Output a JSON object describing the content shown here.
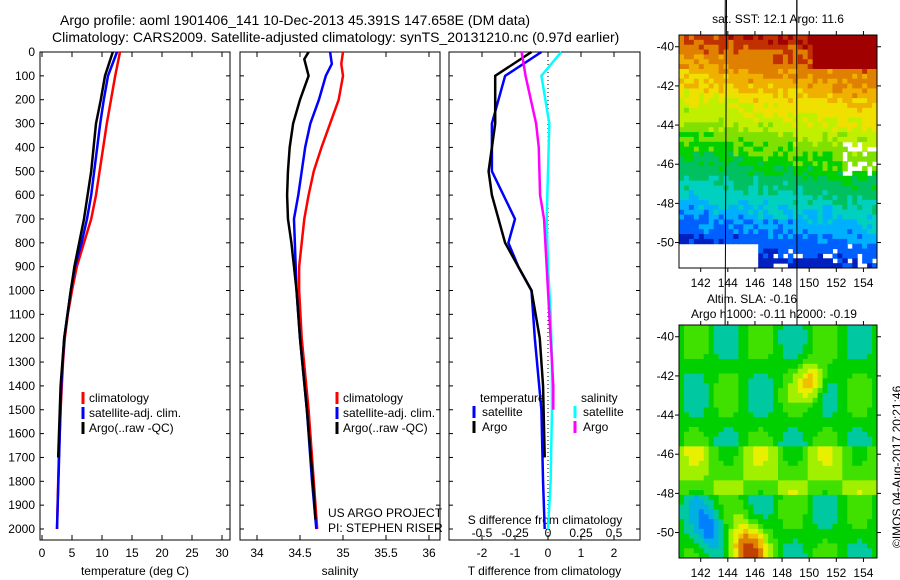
{
  "title": {
    "line1": "Argo profile: aoml 1901406_141 10-Dec-2013 45.391S 147.658E (DM data)",
    "line2": "Climatology: CARS2009. Satellite-adjusted climatology: synTS_20131210.nc (0.97d earlier)"
  },
  "colors": {
    "climatology": "#ff0000",
    "satellite": "#0000ff",
    "argo": "#000000",
    "sat_sal": "#00ffff",
    "argo_sal": "#ff00ff"
  },
  "chart_data": [
    {
      "type": "line",
      "xlabel": "temperature (deg C)",
      "xlim": [
        -1,
        31
      ],
      "ylim": [
        2050,
        0
      ],
      "xticks": [
        "0",
        "5",
        "10",
        "15",
        "20",
        "25",
        "30"
      ],
      "yticks": [
        "0",
        "100",
        "200",
        "300",
        "400",
        "500",
        "600",
        "700",
        "800",
        "900",
        "1000",
        "1100",
        "1200",
        "1300",
        "1400",
        "1500",
        "1600",
        "1700",
        "1800",
        "1900",
        "2000"
      ],
      "legend": [
        "climatology",
        "satellite-adj. clim.",
        "Argo(..raw -QC)"
      ],
      "series": [
        {
          "name": "climatology",
          "color": "#ff0000",
          "depth": [
            0,
            100,
            200,
            300,
            400,
            500,
            600,
            700,
            800,
            900,
            1000,
            1100,
            1200,
            1300,
            1400,
            1500,
            1700,
            2000
          ],
          "values": [
            13,
            12.2,
            11.5,
            10.8,
            10.2,
            9.6,
            9,
            8.2,
            7,
            5.8,
            5,
            4.3,
            3.8,
            3.5,
            3.3,
            3.1,
            2.8,
            2.5
          ]
        },
        {
          "name": "satellite-adj. clim.",
          "color": "#0000ff",
          "depth": [
            0,
            100,
            200,
            300,
            400,
            500,
            600,
            700,
            800,
            900,
            1000,
            1200,
            1400,
            2000
          ],
          "values": [
            12.5,
            11,
            10.3,
            9.7,
            9.2,
            8.7,
            8.2,
            7.5,
            6.6,
            5.5,
            4.8,
            3.7,
            3.2,
            2.5
          ]
        },
        {
          "name": "Argo(..raw -QC)",
          "color": "#000000",
          "depth": [
            0,
            100,
            200,
            300,
            400,
            500,
            600,
            700,
            800,
            900,
            1000,
            1200,
            1400,
            1700
          ],
          "values": [
            11.8,
            10.5,
            9.8,
            9,
            8.6,
            8.2,
            7.6,
            7,
            6.2,
            5.4,
            4.8,
            3.7,
            3.1,
            2.7
          ]
        }
      ]
    },
    {
      "type": "line",
      "xlabel": "salinity",
      "xlim": [
        33.9,
        36.05
      ],
      "ylim": [
        2050,
        0
      ],
      "xticks": [
        "34",
        "34.5",
        "35",
        "35.5",
        "36"
      ],
      "legend": [
        "climatology",
        "satellite-adj. clim.",
        "Argo(..raw -QC)"
      ],
      "annotation": [
        "US ARGO PROJECT",
        "PI: STEPHEN RISER"
      ],
      "series": [
        {
          "name": "climatology",
          "color": "#ff0000",
          "depth": [
            0,
            50,
            100,
            200,
            300,
            400,
            500,
            600,
            700,
            800,
            900,
            1000,
            1200,
            1500,
            1800,
            2000
          ],
          "values": [
            35.0,
            34.98,
            35.0,
            34.95,
            34.85,
            34.75,
            34.66,
            34.6,
            34.55,
            34.52,
            34.49,
            34.49,
            34.52,
            34.6,
            34.66,
            34.7
          ]
        },
        {
          "name": "satellite-adj. clim.",
          "color": "#0000ff",
          "depth": [
            0,
            50,
            100,
            200,
            300,
            400,
            500,
            600,
            700,
            800,
            900,
            1000,
            1200,
            1500,
            1800,
            2000
          ],
          "values": [
            34.85,
            34.87,
            34.8,
            34.72,
            34.62,
            34.56,
            34.52,
            34.48,
            34.43,
            34.44,
            34.45,
            34.46,
            34.5,
            34.58,
            34.64,
            34.69
          ]
        },
        {
          "name": "Argo(..raw -QC)",
          "color": "#000000",
          "depth": [
            0,
            30,
            100,
            200,
            300,
            400,
            500,
            600,
            700,
            800,
            900,
            1000,
            1200,
            1500,
            1800,
            1960
          ],
          "values": [
            34.6,
            34.55,
            34.6,
            34.5,
            34.42,
            34.38,
            34.36,
            34.35,
            34.36,
            34.4,
            34.43,
            34.46,
            34.5,
            34.58,
            34.65,
            34.68
          ]
        }
      ]
    },
    {
      "type": "line",
      "xlabel": "T difference from climatology",
      "xlabel2": "S difference from climatology",
      "xlim": [
        -3,
        3
      ],
      "ylim": [
        2050,
        0
      ],
      "xticks": [
        "-2",
        "-1",
        "0",
        "1",
        "2"
      ],
      "xticks2": [
        "-0.5",
        "-0.25",
        "0",
        "0.25",
        "0.5"
      ],
      "legend_titles": [
        "temperature",
        "salinity"
      ],
      "legend": [
        "satellite",
        "Argo",
        "satellite",
        "Argo"
      ],
      "series": [
        {
          "name": "T satellite",
          "color": "#0000ff",
          "axis": "T",
          "depth": [
            0,
            100,
            300,
            500,
            700,
            800,
            900,
            1000,
            1200,
            1500,
            1800,
            2000
          ],
          "values": [
            -0.2,
            -1.3,
            -1.7,
            -1.7,
            -1.0,
            -1.2,
            -0.9,
            -0.5,
            -0.4,
            -0.2,
            -0.15,
            -0.1
          ]
        },
        {
          "name": "T Argo",
          "color": "#000000",
          "axis": "T",
          "depth": [
            0,
            100,
            300,
            500,
            600,
            800,
            1000,
            1200,
            1400,
            1700
          ],
          "values": [
            -0.5,
            -1.6,
            -1.6,
            -1.8,
            -1.7,
            -1.3,
            -0.5,
            -0.25,
            -0.15,
            -0.1
          ]
        },
        {
          "name": "S satellite",
          "color": "#00ffff",
          "axis": "S",
          "depth": [
            0,
            100,
            300,
            500,
            700,
            900,
            1100,
            1300,
            1500,
            1800,
            2000
          ],
          "values": [
            0.1,
            -0.05,
            0.01,
            0.0,
            -0.01,
            0.0,
            0.02,
            0.03,
            0.03,
            0.02,
            0.0
          ]
        },
        {
          "name": "S Argo",
          "color": "#ff00ff",
          "axis": "S",
          "depth": [
            0,
            100,
            200,
            300,
            400,
            600,
            700,
            900,
            1200,
            1400,
            1500
          ],
          "values": [
            -0.2,
            -0.17,
            -0.13,
            -0.09,
            -0.07,
            -0.06,
            -0.03,
            -0.01,
            0.02,
            0.04,
            0.04
          ]
        }
      ]
    }
  ],
  "maps": [
    {
      "title": "sat. SST: 12.1 Argo: 11.6",
      "xticks": [
        "142",
        "144",
        "146",
        "148",
        "150",
        "152",
        "154"
      ],
      "yticks": [
        "-40",
        "-42",
        "-44",
        "-46",
        "-48",
        "-50"
      ]
    },
    {
      "title1": "Altim. SLA: -0.16",
      "title2": "Argo h1000: -0.11 h2000: -0.19",
      "xticks": [
        "142",
        "144",
        "146",
        "148",
        "150",
        "152",
        "154"
      ],
      "yticks": [
        "-40",
        "-42",
        "-44",
        "-46",
        "-48",
        "-50"
      ]
    }
  ],
  "credit": "©IMOS 04-Aug-2017 20:21:46"
}
